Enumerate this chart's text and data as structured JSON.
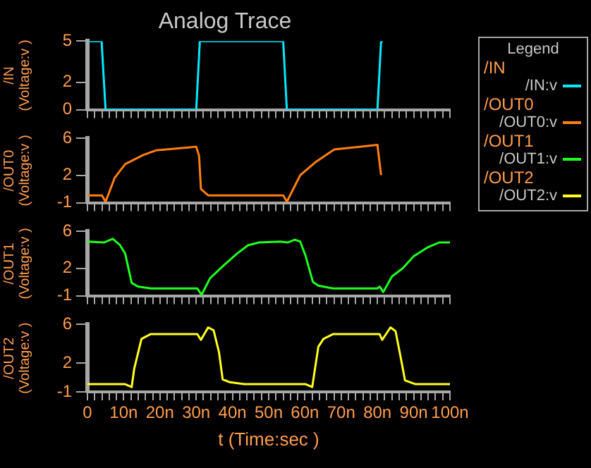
{
  "chart_data": [
    {
      "type": "line",
      "title": "Analog Trace",
      "ylabel": "/IN (Voltage:v )",
      "legend": "right",
      "legend_title": "/IN",
      "annotations": [
        "Legend"
      ],
      "tick_labels": "y",
      "xlim": [
        0,
        100
      ],
      "xticks": [
        0,
        2,
        4,
        6,
        8,
        10,
        12,
        14,
        16,
        18,
        20,
        22,
        24,
        26,
        28,
        30,
        32,
        34,
        36,
        38,
        40,
        42,
        44,
        46,
        48,
        50,
        52,
        54,
        56,
        58,
        60,
        62,
        64,
        66,
        68,
        70,
        72,
        74,
        76,
        78,
        80,
        82,
        84,
        86,
        88,
        90,
        92,
        94,
        96,
        98,
        100
      ],
      "ylim": [
        0,
        5
      ],
      "yticks": [
        0,
        2,
        5
      ],
      "series": [
        {
          "name": "/IN:v",
          "color": "#00e8ff",
          "x": [
            0,
            3.9,
            5,
            30,
            31,
            54,
            55,
            80,
            81,
            81.5
          ],
          "values": [
            5,
            5,
            0,
            0,
            5,
            5,
            0,
            0,
            5,
            5
          ]
        }
      ]
    },
    {
      "type": "line",
      "ylabel": "/OUT0 (Voltage:v )",
      "legend": "right",
      "legend_title": "/OUT0",
      "tick_labels": "y",
      "xlim": [
        0,
        100
      ],
      "xticks": [
        0,
        2,
        4,
        6,
        8,
        10,
        12,
        14,
        16,
        18,
        20,
        22,
        24,
        26,
        28,
        30,
        32,
        34,
        36,
        38,
        40,
        42,
        44,
        46,
        48,
        50,
        52,
        54,
        56,
        58,
        60,
        62,
        64,
        66,
        68,
        70,
        72,
        74,
        76,
        78,
        80,
        82,
        84,
        86,
        88,
        90,
        92,
        94,
        96,
        98,
        100
      ],
      "ylim": [
        -1,
        6
      ],
      "yticks": [
        -1,
        2,
        6
      ],
      "series": [
        {
          "name": "/OUT0:v",
          "color": "#ff7f10",
          "x": [
            0,
            4,
            5,
            7.5,
            10.4,
            15.4,
            18.9,
            27.3,
            30,
            30.8,
            31.3,
            33.3,
            54,
            55,
            58.7,
            63.2,
            68.1,
            80,
            81
          ],
          "values": [
            -0.2,
            -0.2,
            -0.9,
            1.7,
            3.2,
            4.2,
            4.7,
            5,
            5.1,
            4.1,
            0.5,
            -0.2,
            -0.2,
            -0.9,
            2,
            3.5,
            4.8,
            5.3,
            2
          ]
        }
      ]
    },
    {
      "type": "line",
      "ylabel": "/OUT1 (Voltage:v )",
      "legend": "right",
      "legend_title": "/OUT1",
      "tick_labels": "y",
      "xlim": [
        0,
        100
      ],
      "xticks": [
        0,
        2,
        4,
        6,
        8,
        10,
        12,
        14,
        16,
        18,
        20,
        22,
        24,
        26,
        28,
        30,
        32,
        34,
        36,
        38,
        40,
        42,
        44,
        46,
        48,
        50,
        52,
        54,
        56,
        58,
        60,
        62,
        64,
        66,
        68,
        70,
        72,
        74,
        76,
        78,
        80,
        82,
        84,
        86,
        88,
        90,
        92,
        94,
        96,
        98,
        100
      ],
      "ylim": [
        -1,
        6
      ],
      "yticks": [
        -1,
        2,
        6
      ],
      "series": [
        {
          "name": "/OUT1:v",
          "color": "#20ff20",
          "x": [
            0,
            4.5,
            7,
            9,
            10.4,
            12.2,
            13.9,
            17.4,
            30.3,
            31.5,
            33.8,
            37.3,
            41.3,
            44.3,
            47.3,
            53.2,
            55.2,
            57.2,
            58.7,
            60.2,
            62.2,
            63.7,
            67.7,
            80,
            80.6,
            81.6,
            84,
            87,
            90,
            94,
            97,
            100
          ],
          "values": [
            4.9,
            4.8,
            5.2,
            4.5,
            3.6,
            0.4,
            0,
            -0.2,
            -0.2,
            -0.9,
            0.9,
            2.2,
            3.6,
            4.5,
            4.8,
            4.9,
            4.8,
            5.1,
            4.9,
            3.3,
            0.5,
            0.1,
            -0.2,
            -0.2,
            0,
            -0.6,
            1.1,
            2,
            3.3,
            4.3,
            4.8,
            4.8
          ]
        }
      ]
    },
    {
      "type": "line",
      "ylabel": "/OUT2 (Voltage:v )",
      "xlabel": "t (Time:sec )",
      "legend": "right",
      "legend_title": "/OUT2",
      "xlim": [
        0,
        100
      ],
      "xticks": [
        0,
        {
          "value": 2,
          "label": null
        },
        {
          "value": 4,
          "label": null
        },
        {
          "value": 6,
          "label": null
        },
        {
          "value": 8,
          "label": null
        },
        {
          "value": 10,
          "label": "10n"
        },
        {
          "value": 12,
          "label": null
        },
        {
          "value": 14,
          "label": null
        },
        {
          "value": 16,
          "label": null
        },
        {
          "value": 18,
          "label": null
        },
        {
          "value": 20,
          "label": "20n"
        },
        {
          "value": 22,
          "label": null
        },
        {
          "value": 24,
          "label": null
        },
        {
          "value": 26,
          "label": null
        },
        {
          "value": 28,
          "label": null
        },
        {
          "value": 30,
          "label": "30n"
        },
        {
          "value": 32,
          "label": null
        },
        {
          "value": 34,
          "label": null
        },
        {
          "value": 36,
          "label": null
        },
        {
          "value": 38,
          "label": null
        },
        {
          "value": 40,
          "label": "40n"
        },
        {
          "value": 42,
          "label": null
        },
        {
          "value": 44,
          "label": null
        },
        {
          "value": 46,
          "label": null
        },
        {
          "value": 48,
          "label": null
        },
        {
          "value": 50,
          "label": "50n"
        },
        {
          "value": 52,
          "label": null
        },
        {
          "value": 54,
          "label": null
        },
        {
          "value": 56,
          "label": null
        },
        {
          "value": 58,
          "label": null
        },
        {
          "value": 60,
          "label": "60n"
        },
        {
          "value": 62,
          "label": null
        },
        {
          "value": 64,
          "label": null
        },
        {
          "value": 66,
          "label": null
        },
        {
          "value": 68,
          "label": null
        },
        {
          "value": 70,
          "label": "70n"
        },
        {
          "value": 72,
          "label": null
        },
        {
          "value": 74,
          "label": null
        },
        {
          "value": 76,
          "label": null
        },
        {
          "value": 78,
          "label": null
        },
        {
          "value": 80,
          "label": "80n"
        },
        {
          "value": 82,
          "label": null
        },
        {
          "value": 84,
          "label": null
        },
        {
          "value": 86,
          "label": null
        },
        {
          "value": 88,
          "label": null
        },
        {
          "value": 90,
          "label": "90n"
        },
        {
          "value": 92,
          "label": null
        },
        {
          "value": 94,
          "label": null
        },
        {
          "value": 96,
          "label": null
        },
        {
          "value": 98,
          "label": null
        },
        {
          "value": 100,
          "label": "100n"
        }
      ],
      "ylim": [
        -1,
        6
      ],
      "yticks": [
        -1,
        2,
        6
      ],
      "series": [
        {
          "name": "/OUT2:v",
          "color": "#ffff20",
          "x": [
            0,
            10.4,
            12.2,
            12.9,
            14.9,
            17.4,
            30.3,
            31.3,
            33.3,
            34.8,
            36.3,
            37.3,
            39.3,
            43.3,
            60.2,
            62,
            63.7,
            65.1,
            67.7,
            80.6,
            81.3,
            83.6,
            85,
            86.3,
            87.6,
            90.5,
            100
          ],
          "values": [
            -0.2,
            -0.2,
            -0.5,
            1.4,
            4.5,
            5,
            5,
            4.4,
            5.7,
            5.4,
            3.1,
            0.3,
            0,
            -0.2,
            -0.2,
            -0.5,
            3.7,
            4.5,
            5,
            5,
            4.4,
            5.7,
            5.3,
            2.8,
            0.2,
            -0.2,
            -0.2
          ]
        }
      ]
    }
  ]
}
